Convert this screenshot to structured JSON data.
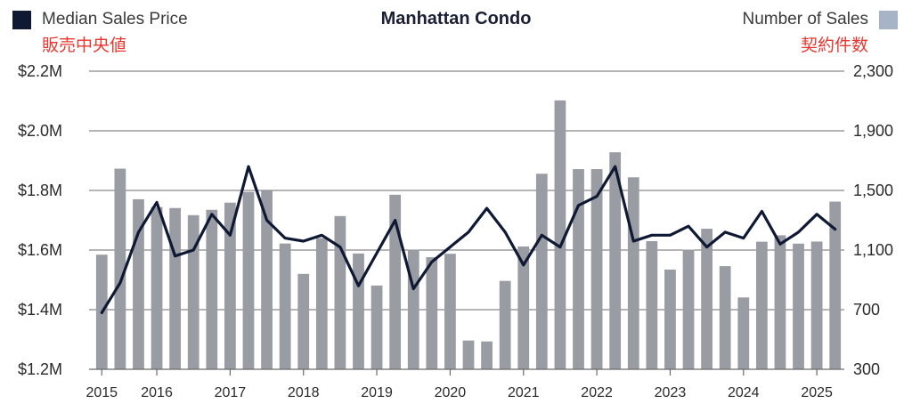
{
  "chart_data": {
    "type": "bar+line",
    "title": "Manhattan Condo",
    "left_legend": {
      "label": "Median Sales Price",
      "label_jp": "販売中央値",
      "color": "#0f1934"
    },
    "right_legend": {
      "label": "Number of Sales",
      "label_jp": "契約件数",
      "color": "#a7b4c8"
    },
    "bar_color": "#9a9ca3",
    "line_color": "#0f1934",
    "left_axis": {
      "min": 1.2,
      "max": 2.2,
      "ticks": [
        "$2.2M",
        "$2.0M",
        "$1.8M",
        "$1.6M",
        "$1.4M",
        "$1.2M"
      ]
    },
    "right_axis": {
      "min": 300,
      "max": 2300,
      "ticks": [
        "2,300",
        "1,900",
        "1,500",
        "1,100",
        "700",
        "300"
      ]
    },
    "x_ticks": [
      "2015",
      "2016",
      "2017",
      "2018",
      "2019",
      "2020",
      "2021",
      "2022",
      "2023",
      "2024",
      "2025"
    ],
    "grid": true,
    "series": [
      {
        "name": "Number of Sales",
        "kind": "bar",
        "values": [
          1069,
          1646,
          1441,
          1388,
          1382,
          1334,
          1370,
          1418,
          1490,
          1499,
          1144,
          940,
          1180,
          1328,
          1077,
          862,
          1471,
          1102,
          1052,
          1075,
          493,
          487,
          893,
          1124,
          1612,
          2104,
          1643,
          1643,
          1756,
          1588,
          1160,
          969,
          1103,
          1243,
          992,
          782,
          1156,
          1199,
          1143,
          1157,
          1425
        ]
      },
      {
        "name": "Median Sales Price",
        "kind": "line",
        "values": [
          1.39,
          1.49,
          1.66,
          1.76,
          1.58,
          1.6,
          1.72,
          1.65,
          1.88,
          1.7,
          1.64,
          1.63,
          1.65,
          1.61,
          1.48,
          1.59,
          1.7,
          1.47,
          1.56,
          1.61,
          1.66,
          1.74,
          1.66,
          1.55,
          1.65,
          1.61,
          1.75,
          1.78,
          1.88,
          1.63,
          1.65,
          1.65,
          1.68,
          1.61,
          1.66,
          1.64,
          1.73,
          1.62,
          1.66,
          1.72,
          1.67
        ]
      }
    ]
  }
}
